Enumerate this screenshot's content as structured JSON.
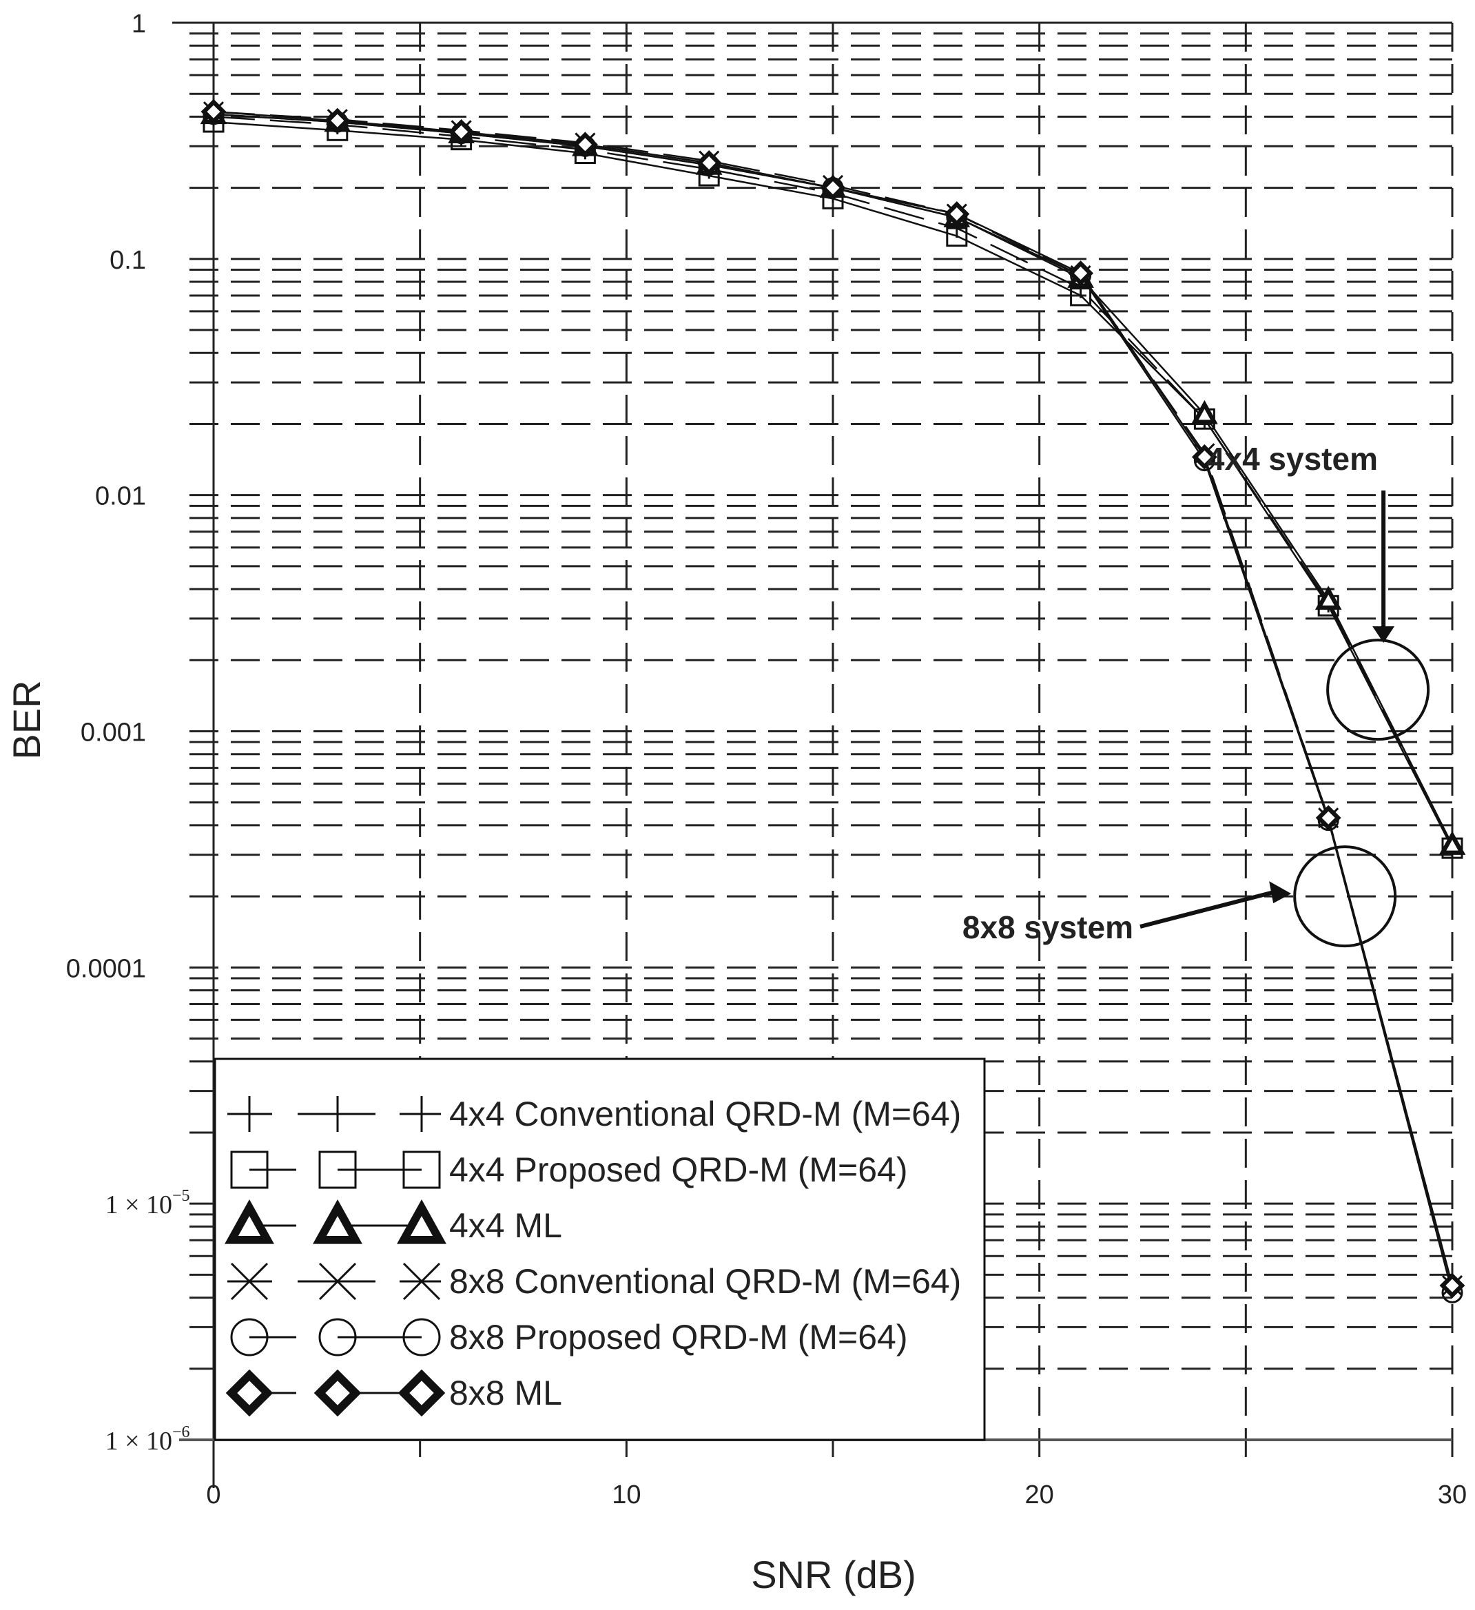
{
  "chart_data": {
    "type": "line",
    "title": "",
    "xlabel": "SNR (dB)",
    "ylabel": "BER",
    "yscale": "log",
    "xlim": [
      0,
      30
    ],
    "ylim": [
      1e-06,
      1
    ],
    "grid": true,
    "x_ticks": [
      0,
      10,
      20,
      30
    ],
    "x_tick_labels": [
      "0",
      "10",
      "20",
      "30"
    ],
    "y_ticks": [
      1,
      0.1,
      0.01,
      0.001,
      0.0001,
      1e-05,
      1e-06
    ],
    "y_tick_labels": [
      "1",
      "0.1",
      "0.01",
      "0.001",
      "0.0001",
      "1 × 10",
      "1 × 10"
    ],
    "y_tick_exponents": [
      "",
      "",
      "",
      "",
      "",
      "−5",
      "−6"
    ],
    "legend_placement": "bottom-left",
    "x": [
      0,
      3,
      6,
      9,
      12,
      15,
      18,
      21,
      24,
      27,
      30
    ],
    "series": [
      {
        "name": "4x4 Conventional QRD-M (M=64)",
        "marker": "plus",
        "style": "dashed",
        "color": "#111111",
        "values": [
          0.4,
          0.37,
          0.33,
          0.29,
          0.24,
          0.19,
          0.135,
          0.075,
          0.021,
          0.0035,
          0.00032
        ]
      },
      {
        "name": "4x4 Proposed QRD-M (M=64)",
        "marker": "square",
        "style": "solid",
        "color": "#111111",
        "values": [
          0.38,
          0.35,
          0.32,
          0.28,
          0.225,
          0.18,
          0.125,
          0.07,
          0.021,
          0.0034,
          0.00032
        ]
      },
      {
        "name": "4x4 ML",
        "marker": "triangle",
        "style": "solid",
        "color": "#111111",
        "values": [
          0.41,
          0.38,
          0.34,
          0.3,
          0.25,
          0.2,
          0.15,
          0.083,
          0.022,
          0.0036,
          0.00033
        ]
      },
      {
        "name": "8x8 Conventional QRD-M (M=64)",
        "marker": "x",
        "style": "dashed",
        "color": "#111111",
        "values": [
          0.42,
          0.39,
          0.35,
          0.31,
          0.26,
          0.205,
          0.155,
          0.085,
          0.015,
          0.00043,
          4.5e-06
        ]
      },
      {
        "name": "8x8 Proposed QRD-M (M=64)",
        "marker": "circle",
        "style": "solid",
        "color": "#111111",
        "values": [
          0.41,
          0.38,
          0.34,
          0.3,
          0.25,
          0.2,
          0.15,
          0.085,
          0.014,
          0.00042,
          4.2e-06
        ]
      },
      {
        "name": "8x8 ML",
        "marker": "diamond",
        "style": "solid",
        "color": "#111111",
        "values": [
          0.42,
          0.385,
          0.345,
          0.305,
          0.255,
          0.2,
          0.155,
          0.087,
          0.0145,
          0.00043,
          4.5e-06
        ]
      }
    ],
    "annotations": [
      {
        "text": "4x4 system",
        "target_snr": 28.2,
        "target_ber": 0.0015
      },
      {
        "text": "8x8 system",
        "target_snr": 27.4,
        "target_ber": 0.0002
      }
    ]
  }
}
